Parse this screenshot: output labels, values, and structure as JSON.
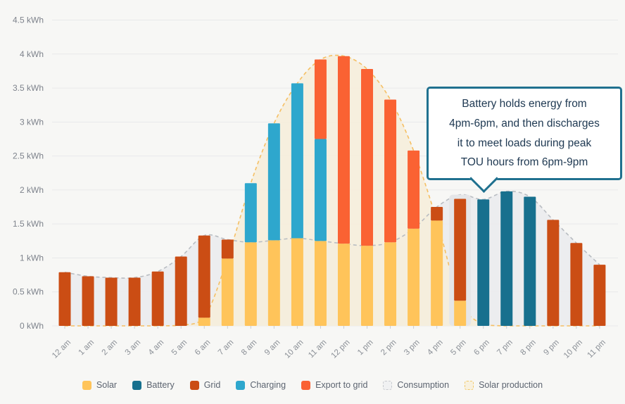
{
  "chart_data": {
    "type": "bar",
    "title": "",
    "unit": "kWh",
    "stacked": true,
    "grid": true,
    "categories": [
      "12 am",
      "1 am",
      "2 am",
      "3 am",
      "4 am",
      "5 am",
      "6 am",
      "7 am",
      "8 am",
      "9 am",
      "10 am",
      "11 am",
      "12 pm",
      "1 pm",
      "2 pm",
      "3 pm",
      "4 pm",
      "5 pm",
      "6 pm",
      "7 pm",
      "8 pm",
      "9 pm",
      "10 pm",
      "11 pm"
    ],
    "series": [
      {
        "name": "Solar",
        "color": "#FFC45A",
        "values": [
          0,
          0,
          0,
          0,
          0,
          0,
          0.12,
          0.99,
          1.23,
          1.26,
          1.29,
          1.25,
          1.21,
          1.18,
          1.23,
          1.43,
          1.55,
          0.37,
          0,
          0,
          0,
          0,
          0,
          0
        ]
      },
      {
        "name": "Battery",
        "color": "#17708E",
        "values": [
          0,
          0,
          0,
          0,
          0,
          0,
          0,
          0,
          0,
          0,
          0,
          0,
          0,
          0,
          0,
          0,
          0,
          0,
          1.86,
          1.98,
          1.9,
          0,
          0,
          0
        ]
      },
      {
        "name": "Grid",
        "color": "#CB4D14",
        "values": [
          0.79,
          0.73,
          0.71,
          0.71,
          0.8,
          1.02,
          1.21,
          0.28,
          0,
          0,
          0,
          0,
          0,
          0,
          0,
          0,
          0.2,
          1.5,
          0,
          0,
          0,
          1.56,
          1.22,
          0.9
        ]
      },
      {
        "name": "Charging",
        "color": "#2EA7CD",
        "values": [
          0,
          0,
          0,
          0,
          0,
          0,
          0,
          0,
          0.87,
          1.72,
          2.28,
          1.5,
          0,
          0,
          0,
          0,
          0,
          0,
          0,
          0,
          0,
          0,
          0,
          0
        ]
      },
      {
        "name": "Export to grid",
        "color": "#FA6233",
        "values": [
          0,
          0,
          0,
          0,
          0,
          0,
          0,
          0,
          0,
          0,
          0,
          1.17,
          2.76,
          2.6,
          2.1,
          1.15,
          0,
          0,
          0,
          0,
          0,
          0,
          0,
          0
        ]
      }
    ],
    "areas": [
      {
        "name": "Consumption",
        "fill": "#EBECEE",
        "line": "#B9BDC2",
        "values": [
          0.79,
          0.73,
          0.71,
          0.71,
          0.8,
          1.02,
          1.33,
          1.27,
          1.23,
          1.26,
          1.29,
          1.25,
          1.21,
          1.18,
          1.23,
          1.43,
          1.75,
          1.93,
          1.86,
          1.98,
          1.9,
          1.56,
          1.22,
          0.9
        ]
      },
      {
        "name": "Solar production",
        "fill": "#F5EEDB",
        "line": "#F5BF63",
        "values": [
          0,
          0,
          0,
          0,
          0,
          0.01,
          0.12,
          0.99,
          2.1,
          2.98,
          3.57,
          3.92,
          3.97,
          3.78,
          3.33,
          2.58,
          1.55,
          0.37,
          0.02,
          0,
          0,
          0,
          0,
          0
        ]
      }
    ],
    "y_axis": {
      "min": 0,
      "max": 4.5,
      "step": 0.5,
      "tick_labels": [
        "0 kWh",
        "0.5 kWh",
        "1 kWh",
        "1.5 kWh",
        "2 kWh",
        "2.5 kWh",
        "3 kWh",
        "3.5 kWh",
        "4 kWh",
        "4.5 kWh"
      ]
    },
    "highlighted_category": "5 pm",
    "legend_position": "bottom"
  },
  "annotation": {
    "lines": [
      "Battery holds energy from",
      "4pm-6pm, and then discharges",
      "it to meet loads during peak",
      "TOU hours from 6pm-9pm"
    ],
    "border_color": "#20718F",
    "text_color": "#203A53",
    "points_to": "6 pm"
  },
  "legend": {
    "items": [
      {
        "label": "Solar",
        "color": "#FFC45A"
      },
      {
        "label": "Battery",
        "color": "#17708E"
      },
      {
        "label": "Grid",
        "color": "#CB4D14"
      },
      {
        "label": "Charging",
        "color": "#2EA7CD"
      },
      {
        "label": "Export to grid",
        "color": "#FA6233"
      },
      {
        "label": "Consumption",
        "fill": "#F0F1F2",
        "border": "#C6C9CD",
        "dashed": true
      },
      {
        "label": "Solar production",
        "fill": "#F8F1DF",
        "border": "#F2C968",
        "dashed": true
      }
    ]
  },
  "colors": {
    "background": "#F7F7F5",
    "gridline": "#E8E9EA",
    "axis_text": "#7E838C",
    "tick": "#C9CCD0",
    "hover_highlight": "#E5E6E8"
  }
}
